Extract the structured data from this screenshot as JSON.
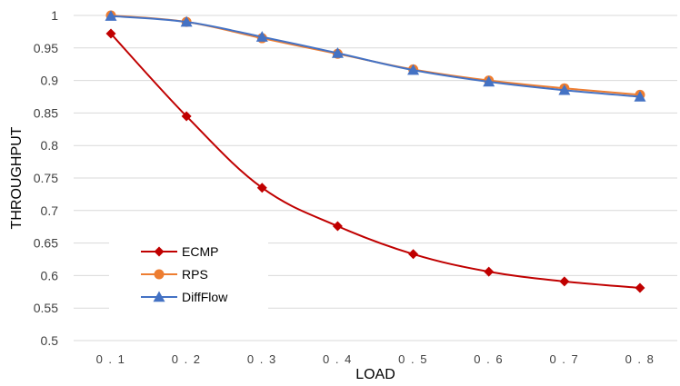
{
  "chart_data": {
    "type": "line",
    "title": "",
    "xlabel": "LOAD",
    "ylabel": "THROUGHPUT",
    "categories": [
      "0.1",
      "0.2",
      "0.3",
      "0.4",
      "0.5",
      "0.6",
      "0.7",
      "0.8"
    ],
    "ylim": [
      0.5,
      1
    ],
    "yticks": [
      "0.5",
      "0.55",
      "0.6",
      "0.65",
      "0.7",
      "0.75",
      "0.8",
      "0.85",
      "0.9",
      "0.95",
      "1"
    ],
    "grid": true,
    "legend_position": "bottom-left",
    "series": [
      {
        "name": "ECMP",
        "color": "#C00000",
        "marker": "diamond",
        "values": [
          0.972,
          0.845,
          0.735,
          0.676,
          0.633,
          0.606,
          0.591,
          0.581
        ]
      },
      {
        "name": "RPS",
        "color": "#ED7D31",
        "marker": "circle",
        "values": [
          1.0,
          0.99,
          0.965,
          0.941,
          0.917,
          0.9,
          0.888,
          0.878
        ]
      },
      {
        "name": "DiffFlow",
        "color": "#4472C4",
        "marker": "triangle",
        "values": [
          0.999,
          0.99,
          0.967,
          0.942,
          0.916,
          0.898,
          0.885,
          0.875
        ]
      }
    ]
  }
}
